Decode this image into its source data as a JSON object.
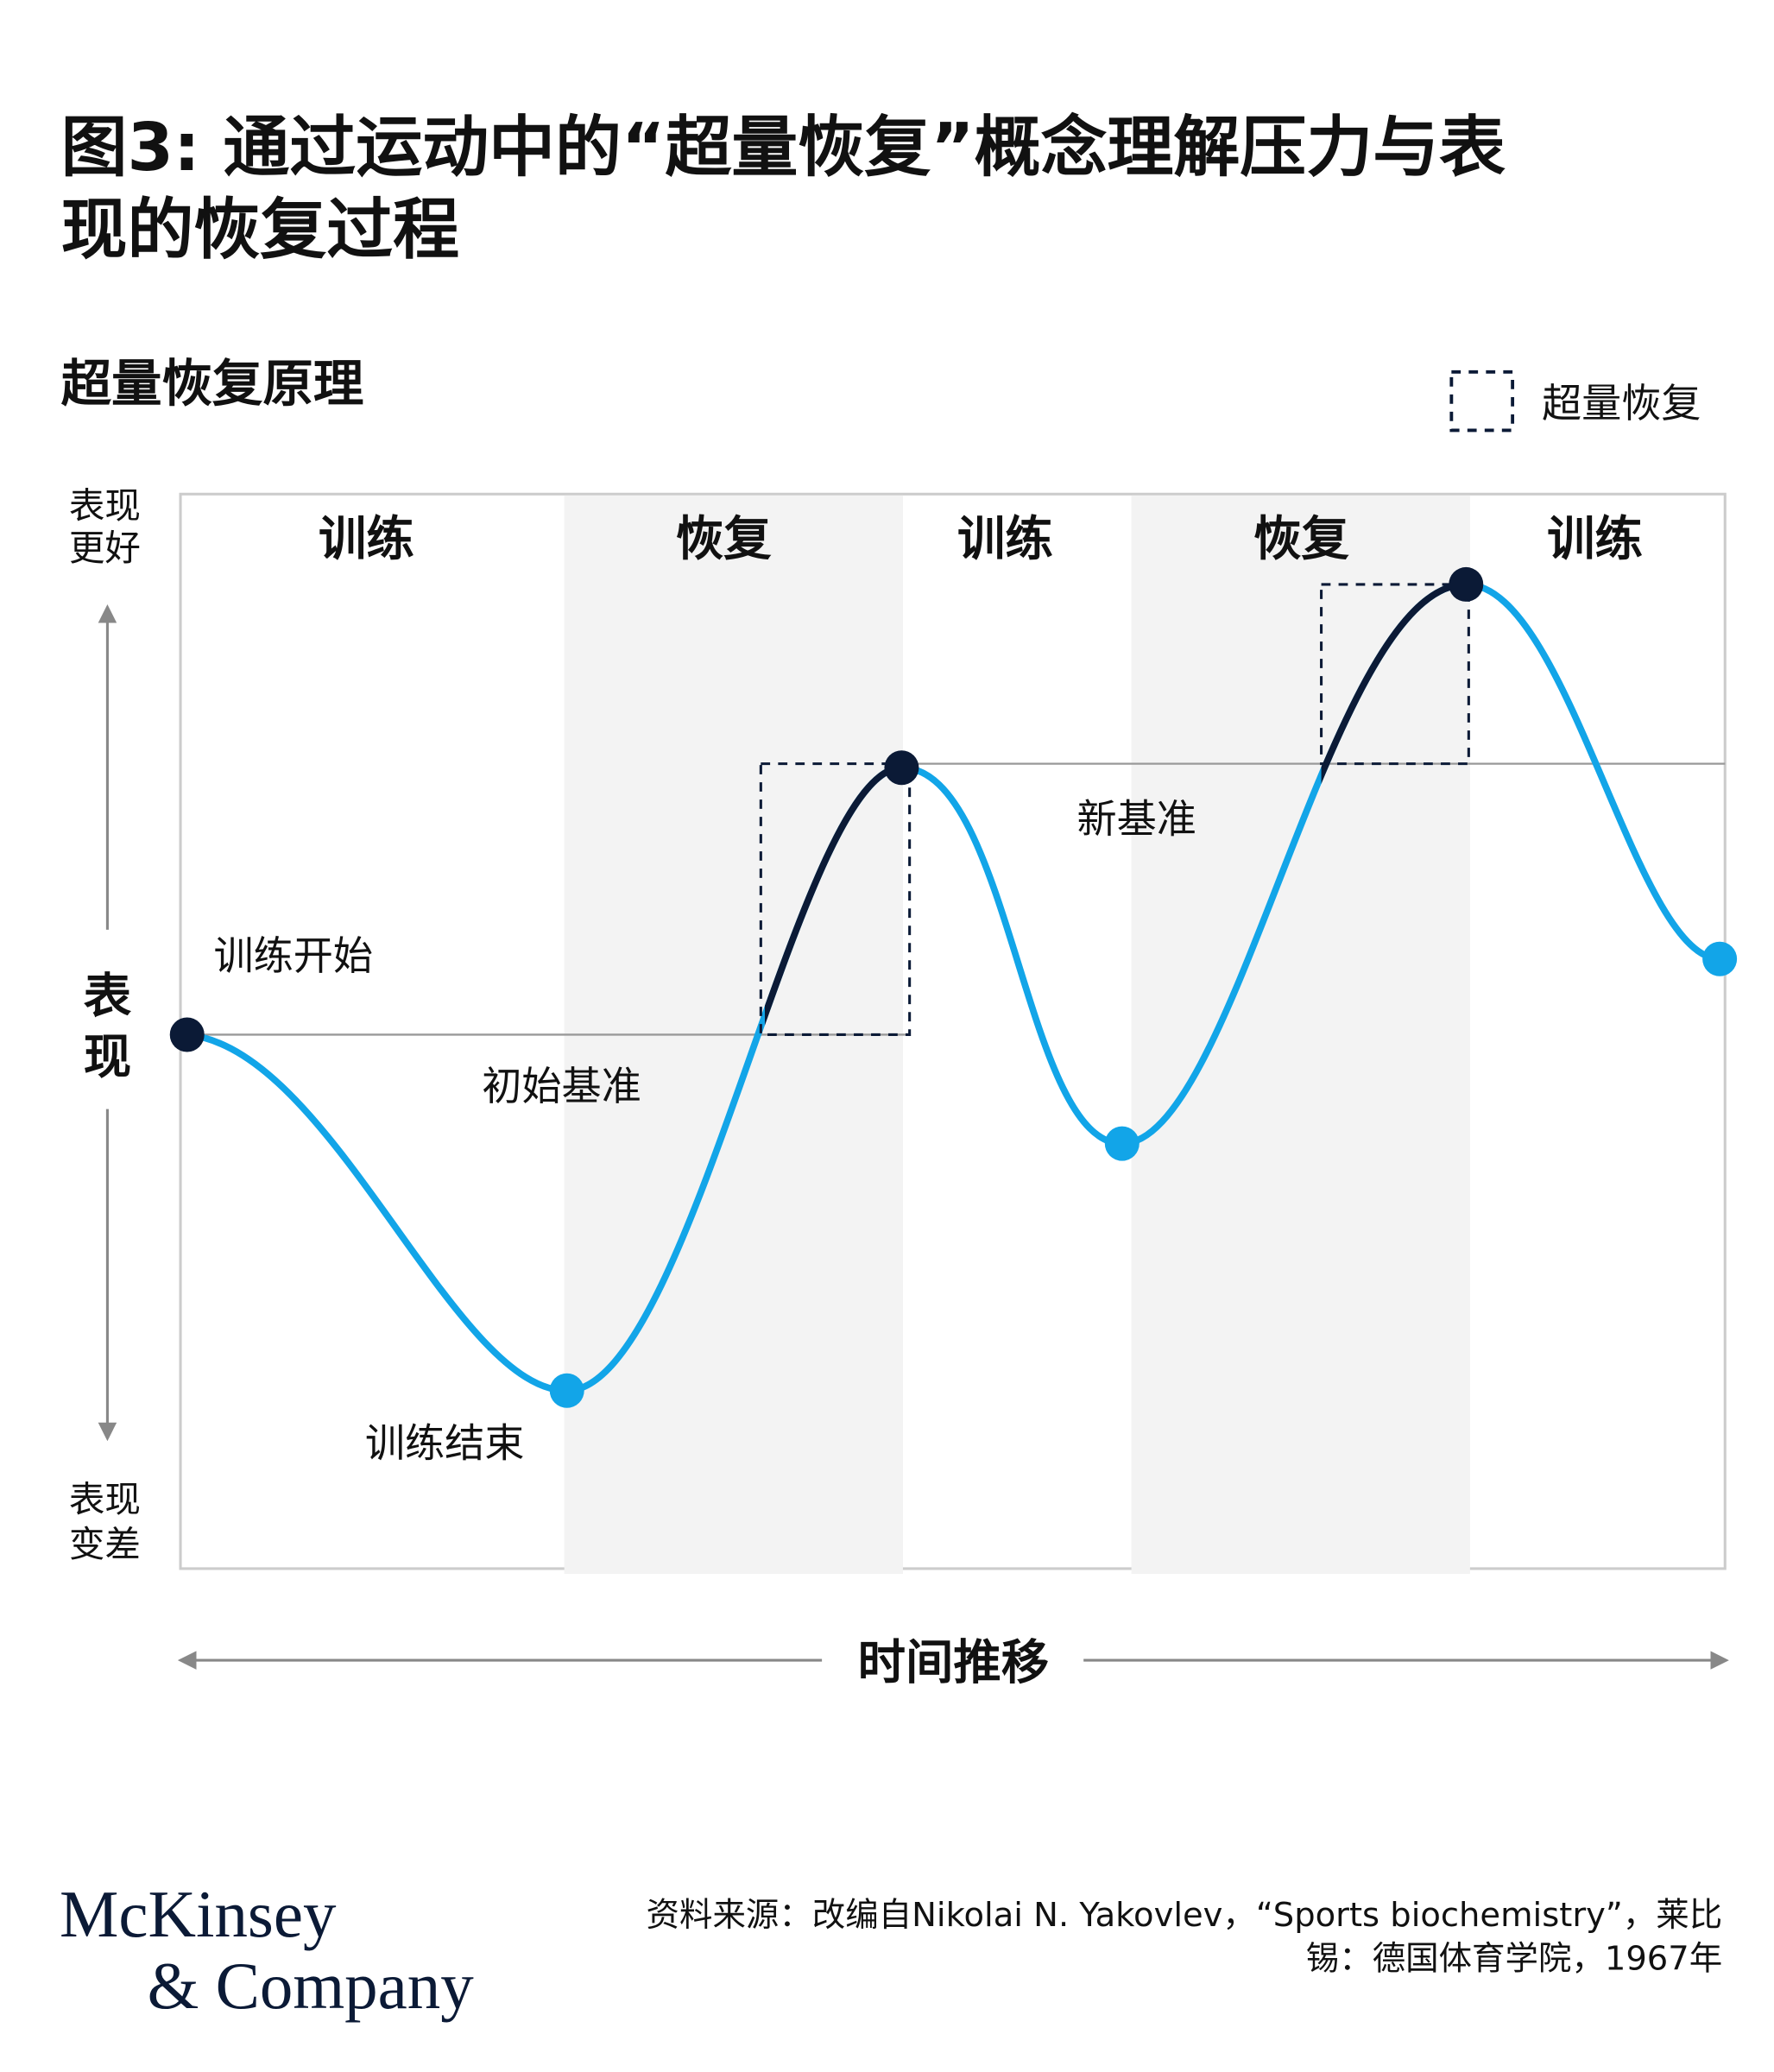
{
  "header": {
    "title_lines": [
      "图3: 通过运动中的“超量恢复”概念理解压力与表",
      "现的恢复过程"
    ],
    "subtitle": "超量恢复原理"
  },
  "legend": {
    "label": "超量恢复"
  },
  "axes": {
    "y_label": [
      "表",
      "现"
    ],
    "y_top": [
      "表现",
      "更好"
    ],
    "y_bottom": [
      "表现",
      "变差"
    ],
    "x_label": "时间推移"
  },
  "phases": [
    "训练",
    "恢复",
    "训练",
    "恢复",
    "训练"
  ],
  "annotations": {
    "start": "训练开始",
    "initial_baseline": "初始基准",
    "end": "训练结束",
    "new_baseline": "新基准"
  },
  "footer": {
    "source_lines": [
      "资料来源：改编自Nikolai N. Yakovlev，“Sports biochemistry”，莱比",
      "锡：德国体育学院，1967年"
    ],
    "logo": [
      "McKinsey",
      "& Company"
    ]
  }
}
